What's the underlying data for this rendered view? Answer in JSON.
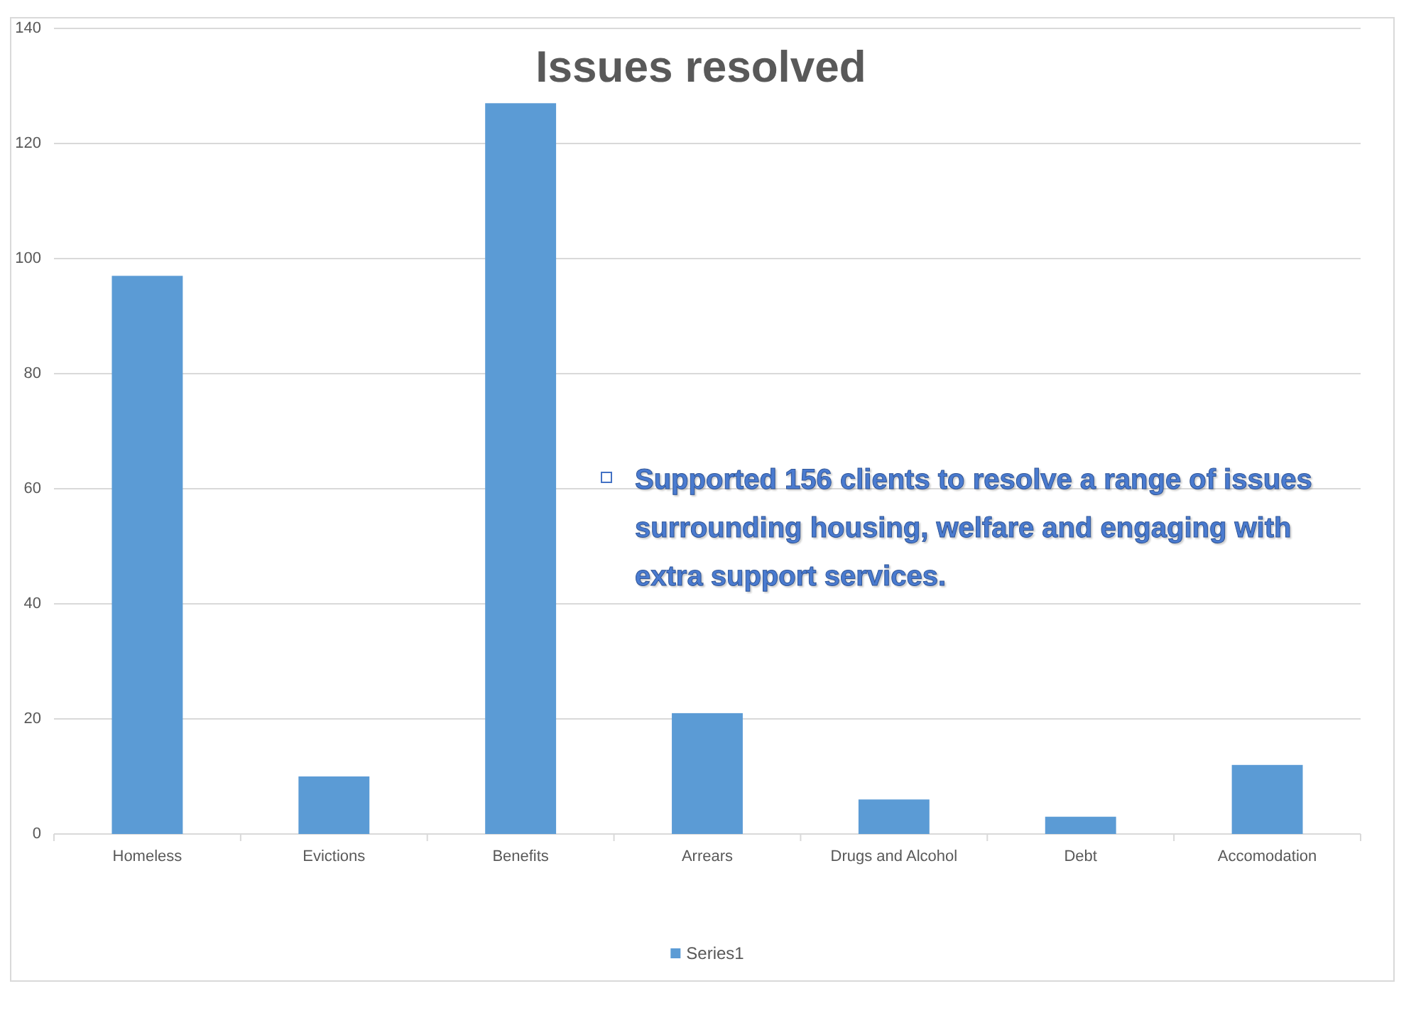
{
  "chart_data": {
    "type": "bar",
    "title": "Issues resolved",
    "categories": [
      "Homeless",
      "Evictions",
      "Benefits",
      "Arrears",
      "Drugs and Alcohol",
      "Debt",
      "Accomodation"
    ],
    "series": [
      {
        "name": "Series1",
        "color": "#5b9bd5",
        "values": [
          97,
          10,
          127,
          21,
          6,
          3,
          12
        ]
      }
    ],
    "ylim": [
      0,
      140
    ],
    "yticks": [
      0,
      20,
      40,
      60,
      80,
      100,
      120,
      140
    ],
    "grid": "y",
    "legend": "bottom",
    "annotations": [
      "Supported 156 clients to resolve a range of issues surrounding housing, welfare and engaging with extra support services."
    ]
  }
}
